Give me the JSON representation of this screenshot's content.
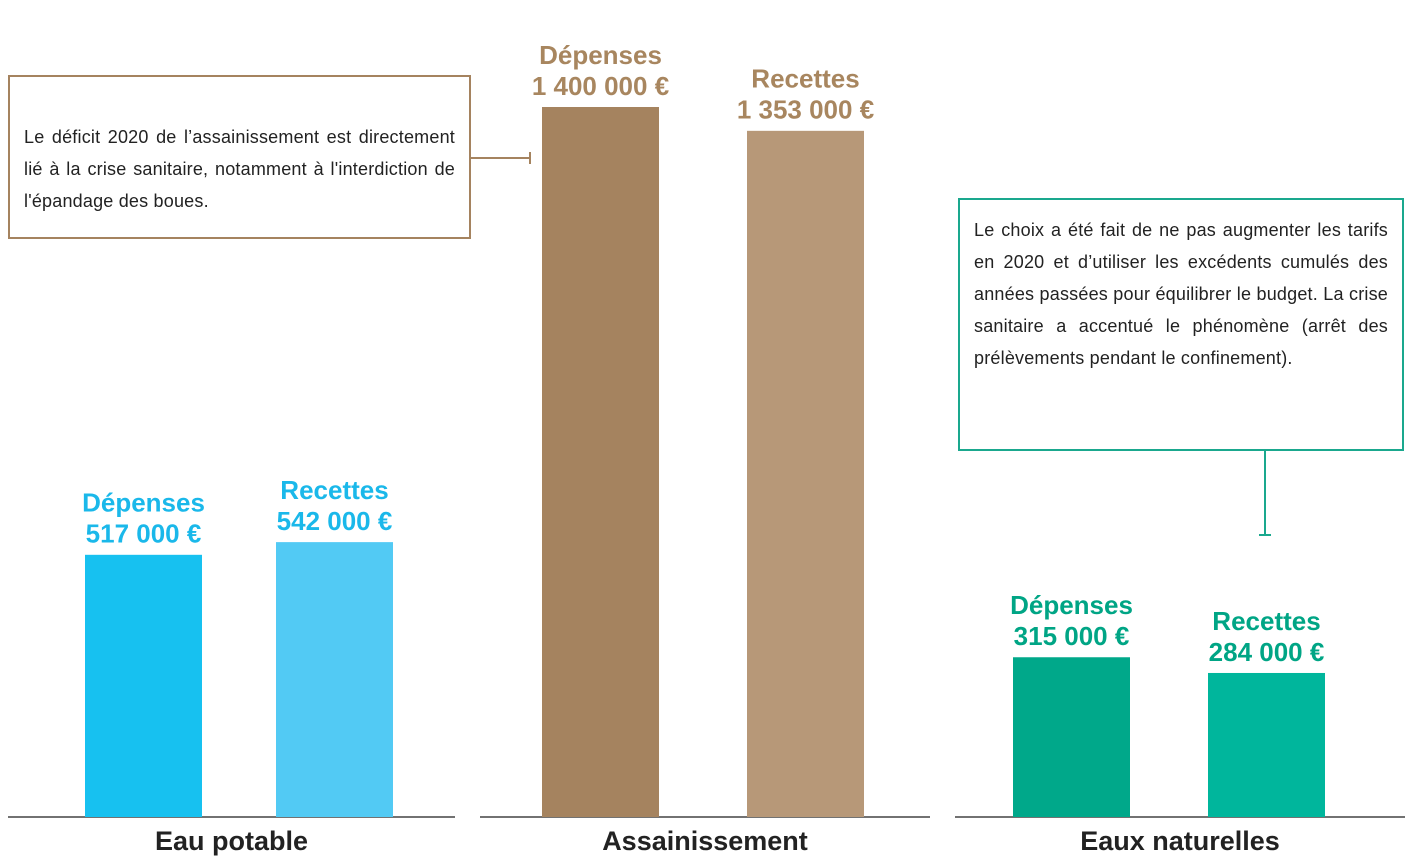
{
  "chart_data": [
    {
      "type": "bar",
      "title": "Eau potable",
      "categories": [
        "Dépenses",
        "Recettes"
      ],
      "values": [
        517000,
        542000
      ],
      "value_labels": [
        "517 000 €",
        "542 000 €"
      ],
      "colors": [
        "#17c1f0",
        "#52caf4"
      ],
      "label_color": "#1ab8ea"
    },
    {
      "type": "bar",
      "title": "Assainissement",
      "categories": [
        "Dépenses",
        "Recettes"
      ],
      "values": [
        1400000,
        1353000
      ],
      "value_labels": [
        "1 400 000 €",
        "1 353 000 €"
      ],
      "colors": [
        "#a5835f",
        "#b79878"
      ],
      "label_color": "#a8865f",
      "annotation": "Le déficit 2020 de l’assainissement est directement lié à la crise sanitaire, notamment à l'interdiction de l'épandage des boues.",
      "annotation_color": "#a5835f"
    },
    {
      "type": "bar",
      "title": "Eaux naturelles",
      "categories": [
        "Dépenses",
        "Recettes"
      ],
      "values": [
        315000,
        284000
      ],
      "value_labels": [
        "315 000 €",
        "284 000 €"
      ],
      "colors": [
        "#00a88a",
        "#00b69c"
      ],
      "label_color": "#00a585",
      "annotation": "Le choix a été fait de ne pas augmenter les tarifs en 2020 et d’utiliser les excédents cumulés des années passées pour équilibrer le budget. La crise sanitaire a accentué le phénomène (arrêt des prélèvements pendant le confinement).",
      "annotation_color": "#1aa88e"
    }
  ]
}
